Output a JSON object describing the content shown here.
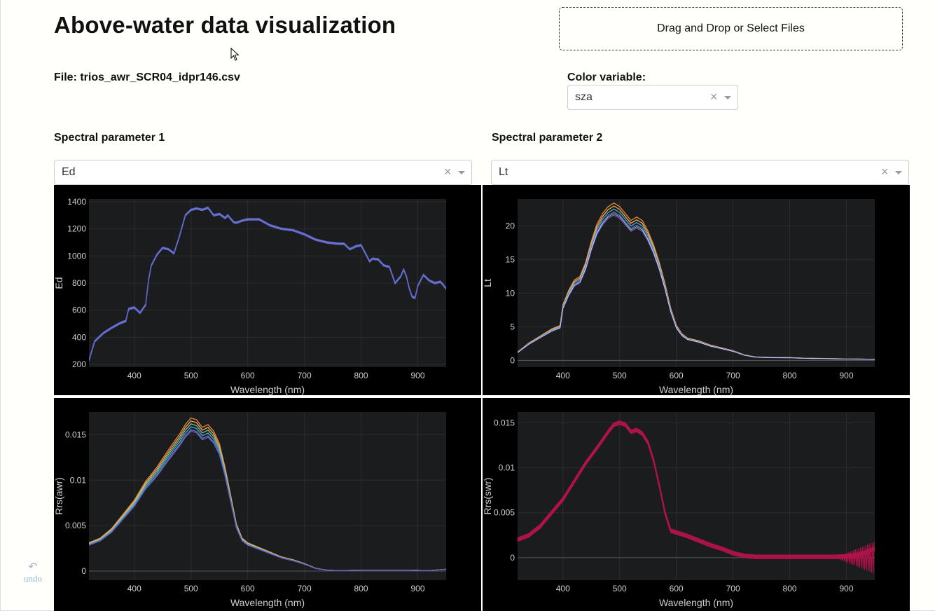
{
  "header": {
    "title": "Above-water data visualization"
  },
  "upload": {
    "label": "Drag and Drop or Select Files"
  },
  "file": {
    "label": "File: trios_awr_SCR04_idpr146.csv"
  },
  "color_variable": {
    "label": "Color variable:",
    "value": "sza",
    "clear": "×"
  },
  "spectral1": {
    "label": "Spectral parameter 1",
    "value": "Ed",
    "clear": "×"
  },
  "spectral2": {
    "label": "Spectral parameter 2",
    "value": "Lt",
    "clear": "×"
  },
  "undo": {
    "label": "undo",
    "icon": "↶"
  },
  "icons": {
    "cursor": "pointer-cursor-icon",
    "undo": "undo-icon"
  },
  "colors": {
    "plot_bg": "#1b1c1e",
    "paper_bg": "#000000",
    "ed_line": "#5b66c8",
    "lt_lines": [
      "#e8823a",
      "#f0b050",
      "#4fa8c8",
      "#5a7ad0",
      "#6a5ab8"
    ],
    "rrs_swr_line": "#b0124a"
  },
  "chart_data": [
    {
      "type": "line",
      "ylabel": "Ed",
      "xlabel": "Wavelength (nm)",
      "xlim": [
        320,
        950
      ],
      "ylim": [
        180,
        1420
      ],
      "xticks": [
        400,
        500,
        600,
        700,
        800,
        900
      ],
      "yticks": [
        200,
        400,
        600,
        800,
        1000,
        1200,
        1400
      ],
      "series": [
        {
          "values": [
            [
              320,
              230
            ],
            [
              330,
              370
            ],
            [
              345,
              430
            ],
            [
              360,
              470
            ],
            [
              375,
              505
            ],
            [
              385,
              520
            ],
            [
              390,
              610
            ],
            [
              400,
              620
            ],
            [
              410,
              580
            ],
            [
              420,
              640
            ],
            [
              425,
              820
            ],
            [
              430,
              930
            ],
            [
              440,
              1010
            ],
            [
              450,
              1060
            ],
            [
              460,
              1050
            ],
            [
              470,
              1020
            ],
            [
              480,
              1150
            ],
            [
              490,
              1300
            ],
            [
              500,
              1340
            ],
            [
              510,
              1350
            ],
            [
              520,
              1340
            ],
            [
              530,
              1355
            ],
            [
              540,
              1300
            ],
            [
              550,
              1310
            ],
            [
              560,
              1280
            ],
            [
              565,
              1300
            ],
            [
              575,
              1250
            ],
            [
              580,
              1245
            ],
            [
              590,
              1260
            ],
            [
              600,
              1270
            ],
            [
              620,
              1270
            ],
            [
              640,
              1225
            ],
            [
              660,
              1200
            ],
            [
              680,
              1190
            ],
            [
              700,
              1160
            ],
            [
              710,
              1140
            ],
            [
              720,
              1120
            ],
            [
              740,
              1100
            ],
            [
              760,
              1090
            ],
            [
              770,
              1090
            ],
            [
              780,
              1050
            ],
            [
              790,
              1070
            ],
            [
              800,
              1080
            ],
            [
              810,
              1000
            ],
            [
              815,
              960
            ],
            [
              820,
              980
            ],
            [
              830,
              975
            ],
            [
              840,
              930
            ],
            [
              850,
              920
            ],
            [
              860,
              800
            ],
            [
              870,
              850
            ],
            [
              875,
              900
            ],
            [
              880,
              850
            ],
            [
              885,
              760
            ],
            [
              890,
              700
            ],
            [
              895,
              690
            ],
            [
              900,
              780
            ],
            [
              910,
              860
            ],
            [
              920,
              820
            ],
            [
              930,
              800
            ],
            [
              940,
              810
            ],
            [
              950,
              760
            ]
          ],
          "kind": "ed"
        }
      ]
    },
    {
      "type": "line",
      "ylabel": "Lt",
      "xlabel": "Wavelength (nm)",
      "xlim": [
        320,
        950
      ],
      "ylim": [
        -1,
        24
      ],
      "xticks": [
        400,
        500,
        600,
        700,
        800,
        900
      ],
      "yticks": [
        0,
        5,
        10,
        15,
        20
      ],
      "series": [
        {
          "values": [
            [
              320,
              1.2
            ],
            [
              340,
              2.5
            ],
            [
              360,
              3.5
            ],
            [
              380,
              4.5
            ],
            [
              395,
              5
            ],
            [
              400,
              8
            ],
            [
              410,
              10
            ],
            [
              420,
              11.5
            ],
            [
              430,
              12
            ],
            [
              440,
              14
            ],
            [
              450,
              17
            ],
            [
              460,
              19.5
            ],
            [
              470,
              21
            ],
            [
              480,
              22
            ],
            [
              490,
              22.5
            ],
            [
              500,
              22
            ],
            [
              510,
              21
            ],
            [
              520,
              20
            ],
            [
              530,
              20.5
            ],
            [
              540,
              20
            ],
            [
              550,
              18.5
            ],
            [
              560,
              16.5
            ],
            [
              570,
              14
            ],
            [
              580,
              11
            ],
            [
              590,
              7.5
            ],
            [
              600,
              5
            ],
            [
              610,
              3.8
            ],
            [
              620,
              3.2
            ],
            [
              640,
              2.8
            ],
            [
              660,
              2.2
            ],
            [
              680,
              1.8
            ],
            [
              700,
              1.4
            ],
            [
              720,
              0.8
            ],
            [
              740,
              0.5
            ],
            [
              760,
              0.45
            ],
            [
              800,
              0.4
            ],
            [
              840,
              0.3
            ],
            [
              880,
              0.25
            ],
            [
              920,
              0.2
            ],
            [
              950,
              0.15
            ]
          ],
          "kind": "lt"
        }
      ]
    },
    {
      "type": "line",
      "ylabel": "Rrs(awr)",
      "xlabel": "Wavelength (nm)",
      "xlim": [
        320,
        950
      ],
      "ylim": [
        -0.001,
        0.0175
      ],
      "xticks": [
        400,
        500,
        600,
        700,
        800,
        900
      ],
      "yticks": [
        0,
        0.005,
        0.01,
        0.015
      ],
      "ytick_labels": [
        "0",
        "0.005",
        "0.01",
        "0.015"
      ],
      "series": [
        {
          "values": [
            [
              320,
              0.003
            ],
            [
              340,
              0.0035
            ],
            [
              360,
              0.0045
            ],
            [
              380,
              0.006
            ],
            [
              400,
              0.0075
            ],
            [
              420,
              0.0095
            ],
            [
              440,
              0.011
            ],
            [
              460,
              0.0128
            ],
            [
              480,
              0.0145
            ],
            [
              490,
              0.0155
            ],
            [
              500,
              0.0162
            ],
            [
              510,
              0.016
            ],
            [
              520,
              0.0152
            ],
            [
              530,
              0.0155
            ],
            [
              540,
              0.0148
            ],
            [
              550,
              0.0135
            ],
            [
              560,
              0.011
            ],
            [
              570,
              0.008
            ],
            [
              580,
              0.005
            ],
            [
              590,
              0.0035
            ],
            [
              600,
              0.003
            ],
            [
              620,
              0.0025
            ],
            [
              640,
              0.002
            ],
            [
              660,
              0.0015
            ],
            [
              680,
              0.0012
            ],
            [
              700,
              0.0008
            ],
            [
              720,
              0.0003
            ],
            [
              740,
              0.0001
            ],
            [
              760,
              5e-05
            ],
            [
              800,
              0.0001
            ],
            [
              840,
              0.0001
            ],
            [
              880,
              0.0001
            ],
            [
              920,
              5e-05
            ],
            [
              950,
              0.0002
            ]
          ],
          "kind": "rrs_awr"
        }
      ]
    },
    {
      "type": "line",
      "ylabel": "Rrs(swr)",
      "xlabel": "Wavelength (nm)",
      "xlim": [
        320,
        950
      ],
      "ylim": [
        -0.0025,
        0.0162
      ],
      "xticks": [
        400,
        500,
        600,
        700,
        800,
        900
      ],
      "yticks": [
        0,
        0.005,
        0.01,
        0.015
      ],
      "ytick_labels": [
        "0",
        "0.005",
        "0.01",
        "0.015"
      ],
      "series": [
        {
          "values": [
            [
              320,
              0.002
            ],
            [
              340,
              0.0025
            ],
            [
              360,
              0.0035
            ],
            [
              380,
              0.005
            ],
            [
              400,
              0.0065
            ],
            [
              420,
              0.0085
            ],
            [
              440,
              0.0105
            ],
            [
              460,
              0.0122
            ],
            [
              480,
              0.014
            ],
            [
              490,
              0.0148
            ],
            [
              500,
              0.015
            ],
            [
              510,
              0.0148
            ],
            [
              520,
              0.014
            ],
            [
              530,
              0.0142
            ],
            [
              540,
              0.0138
            ],
            [
              550,
              0.0128
            ],
            [
              560,
              0.0108
            ],
            [
              570,
              0.008
            ],
            [
              580,
              0.005
            ],
            [
              590,
              0.003
            ],
            [
              600,
              0.0028
            ],
            [
              620,
              0.0024
            ],
            [
              640,
              0.0019
            ],
            [
              660,
              0.0014
            ],
            [
              680,
              0.001
            ],
            [
              700,
              0.0005
            ],
            [
              720,
              0.0002
            ],
            [
              740,
              0.0001
            ],
            [
              800,
              0.0001
            ],
            [
              880,
              0.0001
            ],
            [
              910,
              0.0002
            ],
            [
              930,
              0.0005
            ],
            [
              950,
              0.001
            ]
          ],
          "kind": "rrs_swr"
        }
      ]
    }
  ]
}
